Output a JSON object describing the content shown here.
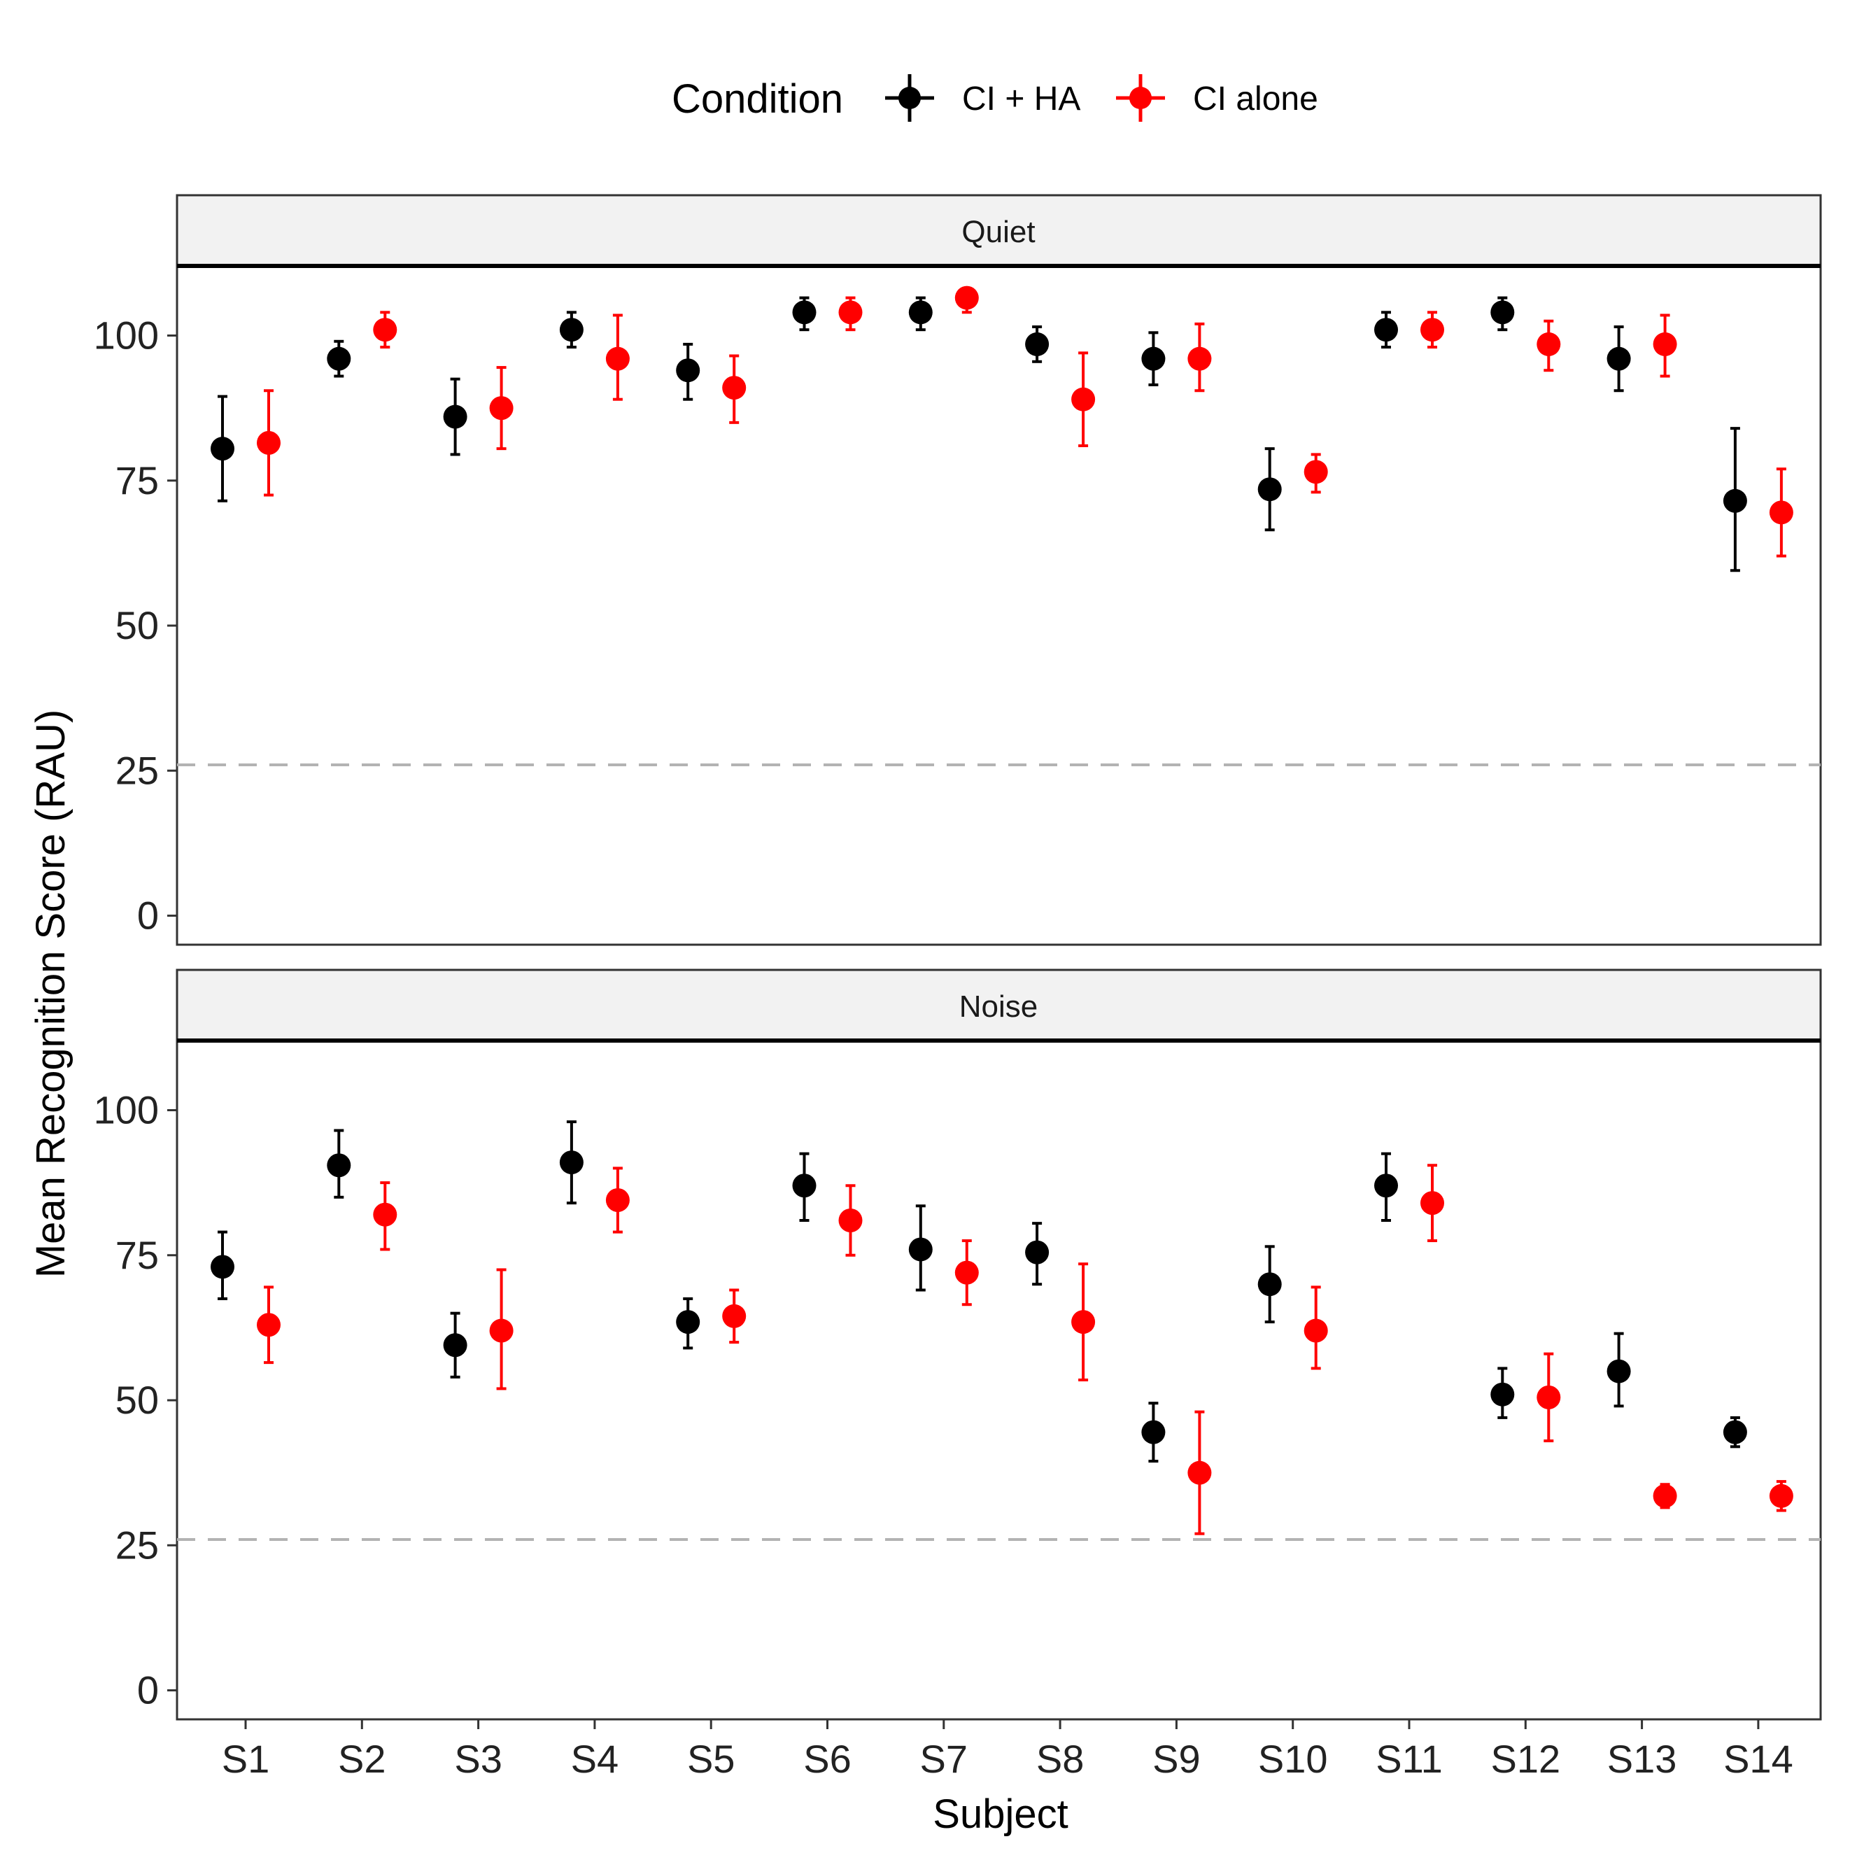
{
  "chart_data": {
    "type": "scatter",
    "title": "",
    "xlabel": "Subject",
    "ylabel": "Mean Recognition Score (RAU)",
    "ylim": [
      -5,
      112
    ],
    "yticks": [
      0,
      25,
      50,
      75,
      100
    ],
    "categories": [
      "S1",
      "S2",
      "S3",
      "S4",
      "S5",
      "S6",
      "S7",
      "S8",
      "S9",
      "S10",
      "S11",
      "S12",
      "S13",
      "S14"
    ],
    "reference_line": 26,
    "legend": {
      "title": "Condition",
      "position": "top",
      "entries": [
        {
          "name": "CI + HA",
          "color": "#000000"
        },
        {
          "name": "CI alone",
          "color": "#ff0000"
        }
      ]
    },
    "facets": [
      {
        "label": "Quiet",
        "series": [
          {
            "name": "CI + HA",
            "color": "#000000",
            "values": [
              80.5,
              96,
              86,
              101,
              94,
              104,
              104,
              98.5,
              96,
              73.5,
              101,
              104,
              96,
              71.5
            ],
            "lower": [
              71.5,
              93,
              79.5,
              98,
              89,
              101,
              101,
              95.5,
              91.5,
              66.5,
              98,
              101,
              90.5,
              59.5
            ],
            "upper": [
              89.5,
              99,
              92.5,
              104,
              98.5,
              106.5,
              106.5,
              101.5,
              100.5,
              80.5,
              104,
              106.5,
              101.5,
              84
            ]
          },
          {
            "name": "CI alone",
            "color": "#ff0000",
            "values": [
              81.5,
              101,
              87.5,
              96,
              91,
              104,
              106.5,
              89,
              96,
              76.5,
              101,
              98.5,
              98.5,
              69.5
            ],
            "lower": [
              72.5,
              98,
              80.5,
              89,
              85,
              101,
              104,
              81,
              90.5,
              73,
              98,
              94,
              93,
              62
            ],
            "upper": [
              90.5,
              104,
              94.5,
              103.5,
              96.5,
              106.5,
              108,
              97,
              102,
              79.5,
              104,
              102.5,
              103.5,
              77
            ]
          }
        ]
      },
      {
        "label": "Noise",
        "series": [
          {
            "name": "CI + HA",
            "color": "#000000",
            "values": [
              73,
              90.5,
              59.5,
              91,
              63.5,
              87,
              76,
              75.5,
              44.5,
              70,
              87,
              51,
              55,
              44.5
            ],
            "lower": [
              67.5,
              85,
              54,
              84,
              59,
              81,
              69,
              70,
              39.5,
              63.5,
              81,
              47,
              49,
              42
            ],
            "upper": [
              79,
              96.5,
              65,
              98,
              67.5,
              92.5,
              83.5,
              80.5,
              49.5,
              76.5,
              92.5,
              55.5,
              61.5,
              47
            ]
          },
          {
            "name": "CI alone",
            "color": "#ff0000",
            "values": [
              63,
              82,
              62,
              84.5,
              64.5,
              81,
              72,
              63.5,
              37.5,
              62,
              84,
              50.5,
              33.5,
              33.5
            ],
            "lower": [
              56.5,
              76,
              52,
              79,
              60,
              75,
              66.5,
              53.5,
              27,
              55.5,
              77.5,
              43,
              31.5,
              31
            ],
            "upper": [
              69.5,
              87.5,
              72.5,
              90,
              69,
              87,
              77.5,
              73.5,
              48,
              69.5,
              90.5,
              58,
              35.5,
              36
            ]
          }
        ]
      }
    ]
  }
}
